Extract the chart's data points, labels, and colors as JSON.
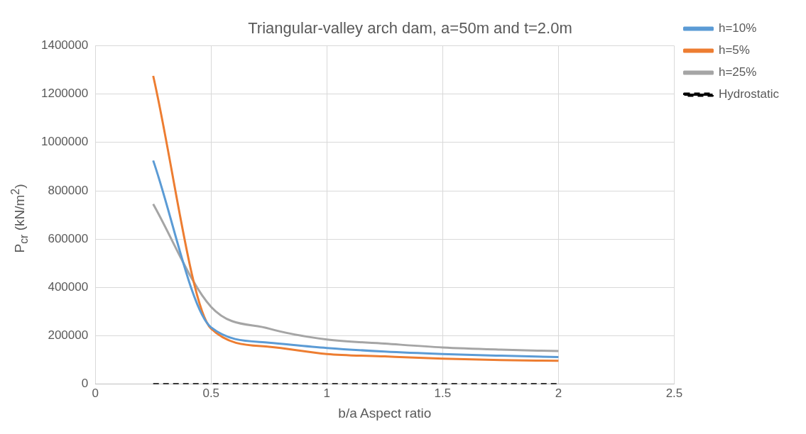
{
  "chart_data": {
    "type": "line",
    "title": "Triangular-valley arch dam, a=50m and t=2.0m",
    "xlabel": "b/a Aspect ratio",
    "ylabel": "P$_{cr}$ (kN/m$^{2}$)",
    "x": [
      0.25,
      0.5,
      0.75,
      1,
      1.25,
      1.5,
      1.75,
      2
    ],
    "series": [
      {
        "name": "h=10%",
        "color": "#5b9bd5",
        "values": [
          925000,
          235000,
          172000,
          150000,
          135000,
          125000,
          118000,
          112000
        ]
      },
      {
        "name": "h=5%",
        "color": "#ed7d31",
        "values": [
          1275000,
          230000,
          155000,
          125000,
          115000,
          106000,
          100000,
          97000
        ]
      },
      {
        "name": "h=25%",
        "color": "#a5a5a5",
        "values": [
          745000,
          320000,
          230000,
          185000,
          168000,
          152000,
          143000,
          137000
        ]
      },
      {
        "name": "Hydrostatic",
        "color": "#000000",
        "line_style": "dashed",
        "values": [
          0,
          0,
          0,
          0,
          0,
          0,
          0,
          0
        ]
      }
    ],
    "xlim": [
      0,
      2.5
    ],
    "xticks": [
      0,
      0.5,
      1,
      1.5,
      2,
      2.5
    ],
    "ylim": [
      0,
      1400000
    ],
    "yticks": [
      0,
      200000,
      400000,
      600000,
      800000,
      1000000,
      1200000,
      1400000
    ],
    "grid": true,
    "legend": "right",
    "marker": "none",
    "line_style": "solid"
  }
}
